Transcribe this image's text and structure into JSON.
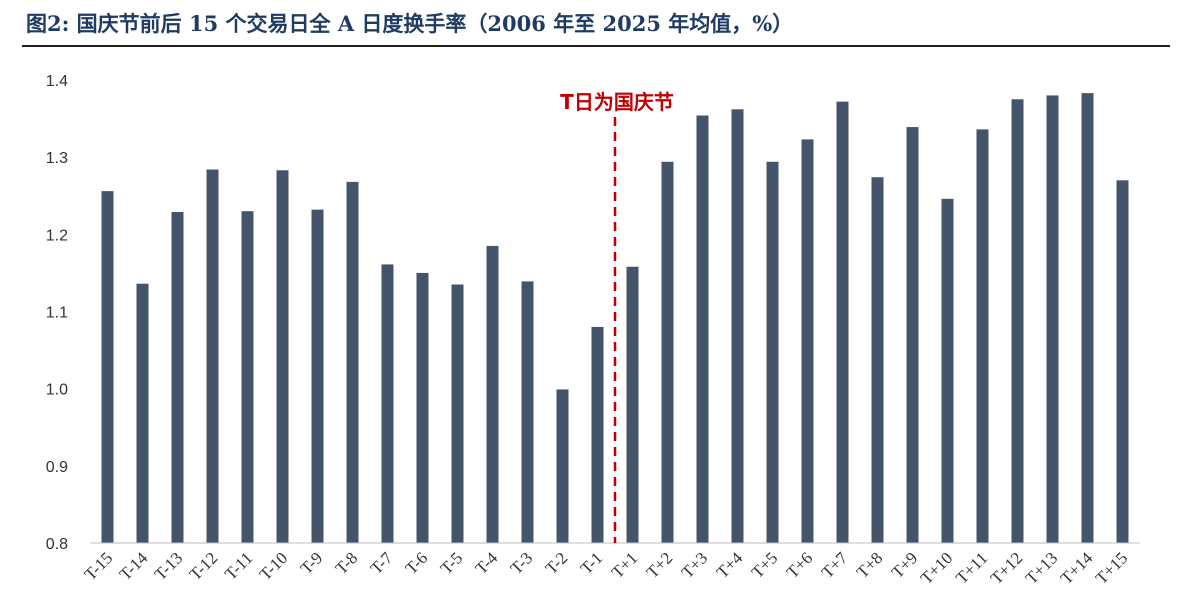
{
  "title": "图2:  国庆节前后 15 个交易日全 A 日度换手率（2006 年至 2025 年均值，%）",
  "colors": {
    "bar": "#44546a",
    "marker": "#c00000",
    "title": "#1f3b63"
  },
  "chart_data": {
    "type": "bar",
    "title": "图2:  国庆节前后 15 个交易日全 A 日度换手率（2006 年至 2025 年均值，%）",
    "xlabel": "",
    "ylabel": "",
    "ylim": [
      0.8,
      1.4
    ],
    "yticks": [
      "0.8",
      "0.9",
      "1.0",
      "1.1",
      "1.2",
      "1.3",
      "1.4"
    ],
    "grid": false,
    "legend": "none",
    "categories": [
      "T-15",
      "T-14",
      "T-13",
      "T-12",
      "T-11",
      "T-10",
      "T-9",
      "T-8",
      "T-7",
      "T-6",
      "T-5",
      "T-4",
      "T-3",
      "T-2",
      "T-1",
      "T+1",
      "T+2",
      "T+3",
      "T+4",
      "T+5",
      "T+6",
      "T+7",
      "T+8",
      "T+9",
      "T+10",
      "T+11",
      "T+12",
      "T+13",
      "T+14",
      "T+15"
    ],
    "values": [
      1.256,
      1.136,
      1.229,
      1.284,
      1.23,
      1.283,
      1.232,
      1.268,
      1.161,
      1.15,
      1.135,
      1.185,
      1.139,
      0.999,
      1.08,
      1.158,
      1.294,
      1.354,
      1.362,
      1.294,
      1.323,
      1.372,
      1.274,
      1.339,
      1.246,
      1.336,
      1.375,
      1.38,
      1.383,
      1.27
    ],
    "annotation": {
      "text": "T日为国庆节",
      "between": [
        "T-1",
        "T+1"
      ]
    }
  }
}
